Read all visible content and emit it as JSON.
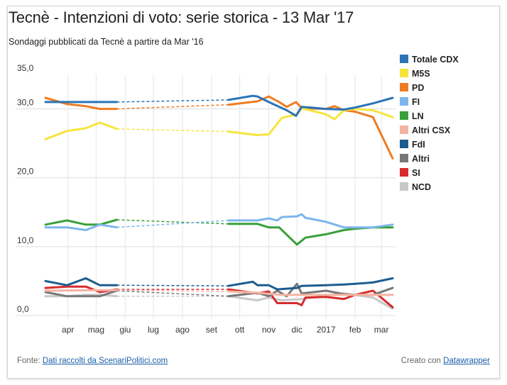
{
  "header": {
    "title": "Tecnè - Intenzioni di voto: serie storica - 13 Mar '17",
    "subtitle": "Sondaggi pubblicati da Tecnè a partire da Mar '16"
  },
  "footer": {
    "source_prefix": "Fonte: ",
    "source_link": "Dati raccolti da ScenariPolitici.com",
    "credit_prefix": "Creato con ",
    "credit_link": "Datawrapper"
  },
  "chart_data": {
    "type": "line",
    "title": "Tecnè - Intenzioni di voto: serie storica - 13 Mar '17",
    "subtitle": "Sondaggi pubblicati da Tecnè a partire da Mar '16",
    "x_unit": "date",
    "xlim": [
      "2016-03-08",
      "2017-03-13"
    ],
    "ylim": [
      0,
      35
    ],
    "yticks": [
      0,
      10,
      20,
      30,
      35
    ],
    "ytick_labels": [
      "0,0",
      "10,0",
      "20,0",
      "30,0",
      "35,0"
    ],
    "ytick_grid": [
      0,
      10,
      20,
      30
    ],
    "xticks": [
      "2016-04-01",
      "2016-05-01",
      "2016-06-01",
      "2016-07-01",
      "2016-08-01",
      "2016-09-01",
      "2016-10-01",
      "2016-11-01",
      "2016-12-01",
      "2017-01-01",
      "2017-02-01",
      "2017-03-01"
    ],
    "xtick_labels": [
      "apr",
      "mag",
      "giu",
      "lug",
      "ago",
      "set",
      "ott",
      "nov",
      "dic",
      "2017",
      "feb",
      "mar"
    ],
    "gap": [
      "2016-05-23",
      "2016-09-19"
    ],
    "legend_position": "right",
    "grid": "horizontal",
    "series": [
      {
        "name": "Totale CDX",
        "color": "#2b74b8",
        "points": [
          [
            "2016-03-08",
            31.0
          ],
          [
            "2016-03-31",
            31.0
          ],
          [
            "2016-05-01",
            31.0
          ],
          [
            "2016-05-23",
            31.0
          ],
          [
            "2016-09-19",
            31.3
          ],
          [
            "2016-10-15",
            31.9
          ],
          [
            "2016-10-20",
            31.8
          ],
          [
            "2016-11-01",
            31.0
          ],
          [
            "2016-11-20",
            29.8
          ],
          [
            "2016-11-30",
            29.0
          ],
          [
            "2016-12-06",
            30.3
          ],
          [
            "2016-12-15",
            30.2
          ],
          [
            "2017-01-01",
            30.0
          ],
          [
            "2017-01-20",
            29.9
          ],
          [
            "2017-02-01",
            30.2
          ],
          [
            "2017-02-20",
            30.8
          ],
          [
            "2017-03-13",
            31.6
          ]
        ]
      },
      {
        "name": "M5S",
        "color": "#f5e53b",
        "points": [
          [
            "2016-03-08",
            25.6
          ],
          [
            "2016-03-31",
            26.8
          ],
          [
            "2016-04-20",
            27.2
          ],
          [
            "2016-05-05",
            28.0
          ],
          [
            "2016-05-23",
            27.1
          ],
          [
            "2016-09-19",
            26.7
          ],
          [
            "2016-10-20",
            26.2
          ],
          [
            "2016-11-01",
            26.3
          ],
          [
            "2016-11-15",
            28.7
          ],
          [
            "2016-12-01",
            29.2
          ],
          [
            "2016-12-06",
            30.1
          ],
          [
            "2017-01-01",
            29.2
          ],
          [
            "2017-01-10",
            28.5
          ],
          [
            "2017-01-20",
            29.8
          ],
          [
            "2017-02-01",
            30.0
          ],
          [
            "2017-02-20",
            29.8
          ],
          [
            "2017-03-13",
            28.8
          ]
        ]
      },
      {
        "name": "PD",
        "color": "#f07c22",
        "points": [
          [
            "2016-03-08",
            31.6
          ],
          [
            "2016-03-31",
            30.7
          ],
          [
            "2016-04-20",
            30.4
          ],
          [
            "2016-05-05",
            30.0
          ],
          [
            "2016-05-23",
            30.0
          ],
          [
            "2016-09-19",
            30.6
          ],
          [
            "2016-10-20",
            31.1
          ],
          [
            "2016-11-01",
            31.8
          ],
          [
            "2016-11-12",
            31.0
          ],
          [
            "2016-11-20",
            30.3
          ],
          [
            "2016-11-30",
            31.0
          ],
          [
            "2016-12-06",
            30.1
          ],
          [
            "2017-01-01",
            30.0
          ],
          [
            "2017-01-10",
            30.4
          ],
          [
            "2017-01-20",
            29.8
          ],
          [
            "2017-02-01",
            29.6
          ],
          [
            "2017-02-20",
            28.8
          ],
          [
            "2017-03-13",
            22.8
          ]
        ]
      },
      {
        "name": "FI",
        "color": "#7cb5ec",
        "points": [
          [
            "2016-03-08",
            12.8
          ],
          [
            "2016-03-31",
            12.8
          ],
          [
            "2016-04-20",
            12.4
          ],
          [
            "2016-05-05",
            13.2
          ],
          [
            "2016-05-23",
            12.8
          ],
          [
            "2016-09-19",
            13.8
          ],
          [
            "2016-10-20",
            13.8
          ],
          [
            "2016-11-01",
            14.1
          ],
          [
            "2016-11-10",
            13.8
          ],
          [
            "2016-11-15",
            14.3
          ],
          [
            "2016-12-01",
            14.4
          ],
          [
            "2016-12-06",
            14.7
          ],
          [
            "2016-12-10",
            14.2
          ],
          [
            "2017-01-01",
            13.6
          ],
          [
            "2017-01-20",
            12.8
          ],
          [
            "2017-02-01",
            12.8
          ],
          [
            "2017-02-20",
            12.8
          ],
          [
            "2017-03-13",
            13.2
          ]
        ]
      },
      {
        "name": "LN",
        "color": "#38a03a",
        "points": [
          [
            "2016-03-08",
            13.2
          ],
          [
            "2016-03-31",
            13.8
          ],
          [
            "2016-04-20",
            13.2
          ],
          [
            "2016-05-05",
            13.2
          ],
          [
            "2016-05-23",
            13.9
          ],
          [
            "2016-09-19",
            13.3
          ],
          [
            "2016-10-20",
            13.3
          ],
          [
            "2016-11-01",
            12.8
          ],
          [
            "2016-11-12",
            12.8
          ],
          [
            "2016-12-01",
            10.3
          ],
          [
            "2016-12-10",
            11.3
          ],
          [
            "2017-01-01",
            11.8
          ],
          [
            "2017-01-20",
            12.4
          ],
          [
            "2017-02-01",
            12.6
          ],
          [
            "2017-02-20",
            12.8
          ],
          [
            "2017-03-13",
            12.8
          ]
        ]
      },
      {
        "name": "Altri CSX",
        "color": "#f5b3a3",
        "points": [
          [
            "2016-03-08",
            3.6
          ],
          [
            "2016-05-23",
            3.7
          ],
          [
            "2016-09-19",
            3.5
          ],
          [
            "2016-10-20",
            3.3
          ],
          [
            "2016-11-15",
            3.0
          ],
          [
            "2016-12-06",
            3.0
          ],
          [
            "2017-03-13",
            3.0
          ]
        ]
      },
      {
        "name": "FdI",
        "color": "#1d5c8e",
        "points": [
          [
            "2016-03-08",
            5.0
          ],
          [
            "2016-03-31",
            4.4
          ],
          [
            "2016-04-20",
            5.4
          ],
          [
            "2016-05-05",
            4.4
          ],
          [
            "2016-05-23",
            4.4
          ],
          [
            "2016-09-19",
            4.3
          ],
          [
            "2016-10-15",
            4.9
          ],
          [
            "2016-10-20",
            4.4
          ],
          [
            "2016-11-01",
            4.4
          ],
          [
            "2016-11-10",
            3.8
          ],
          [
            "2016-12-01",
            4.0
          ],
          [
            "2016-12-06",
            4.3
          ],
          [
            "2017-01-01",
            4.4
          ],
          [
            "2017-01-20",
            4.5
          ],
          [
            "2017-02-01",
            4.6
          ],
          [
            "2017-02-20",
            4.8
          ],
          [
            "2017-03-13",
            5.4
          ]
        ]
      },
      {
        "name": "Altri",
        "color": "#777777",
        "points": [
          [
            "2016-03-08",
            3.4
          ],
          [
            "2016-03-31",
            2.8
          ],
          [
            "2016-04-20",
            2.8
          ],
          [
            "2016-05-05",
            2.8
          ],
          [
            "2016-05-23",
            3.6
          ],
          [
            "2016-09-19",
            2.8
          ],
          [
            "2016-10-20",
            3.3
          ],
          [
            "2016-11-01",
            2.8
          ],
          [
            "2016-11-10",
            3.6
          ],
          [
            "2016-11-20",
            2.8
          ],
          [
            "2016-12-01",
            4.6
          ],
          [
            "2016-12-06",
            3.2
          ],
          [
            "2017-01-01",
            3.6
          ],
          [
            "2017-01-20",
            3.1
          ],
          [
            "2017-02-01",
            3.0
          ],
          [
            "2017-02-20",
            3.0
          ],
          [
            "2017-03-13",
            4.0
          ]
        ]
      },
      {
        "name": "SI",
        "color": "#d62c2c",
        "points": [
          [
            "2016-03-08",
            4.0
          ],
          [
            "2016-03-31",
            4.2
          ],
          [
            "2016-04-20",
            4.2
          ],
          [
            "2016-05-05",
            3.4
          ],
          [
            "2016-05-23",
            3.8
          ],
          [
            "2016-09-19",
            3.8
          ],
          [
            "2016-10-20",
            3.2
          ],
          [
            "2016-11-01",
            3.5
          ],
          [
            "2016-11-10",
            1.8
          ],
          [
            "2016-12-01",
            1.8
          ],
          [
            "2016-12-06",
            1.5
          ],
          [
            "2016-12-10",
            2.6
          ],
          [
            "2017-01-01",
            2.7
          ],
          [
            "2017-01-20",
            2.4
          ],
          [
            "2017-02-01",
            3.0
          ],
          [
            "2017-02-20",
            3.6
          ],
          [
            "2017-03-13",
            1.2
          ]
        ]
      },
      {
        "name": "NCD",
        "color": "#c8c8c8",
        "points": [
          [
            "2016-03-08",
            2.8
          ],
          [
            "2016-03-31",
            2.8
          ],
          [
            "2016-04-20",
            3.0
          ],
          [
            "2016-05-05",
            3.0
          ],
          [
            "2016-05-23",
            2.8
          ],
          [
            "2016-09-19",
            2.8
          ],
          [
            "2016-10-20",
            2.2
          ],
          [
            "2016-11-01",
            2.6
          ],
          [
            "2016-11-15",
            2.2
          ],
          [
            "2016-12-06",
            2.4
          ],
          [
            "2017-01-01",
            2.9
          ],
          [
            "2017-01-20",
            3.2
          ],
          [
            "2017-02-01",
            3.0
          ],
          [
            "2017-02-20",
            2.6
          ],
          [
            "2017-03-13",
            1.0
          ]
        ]
      }
    ]
  }
}
